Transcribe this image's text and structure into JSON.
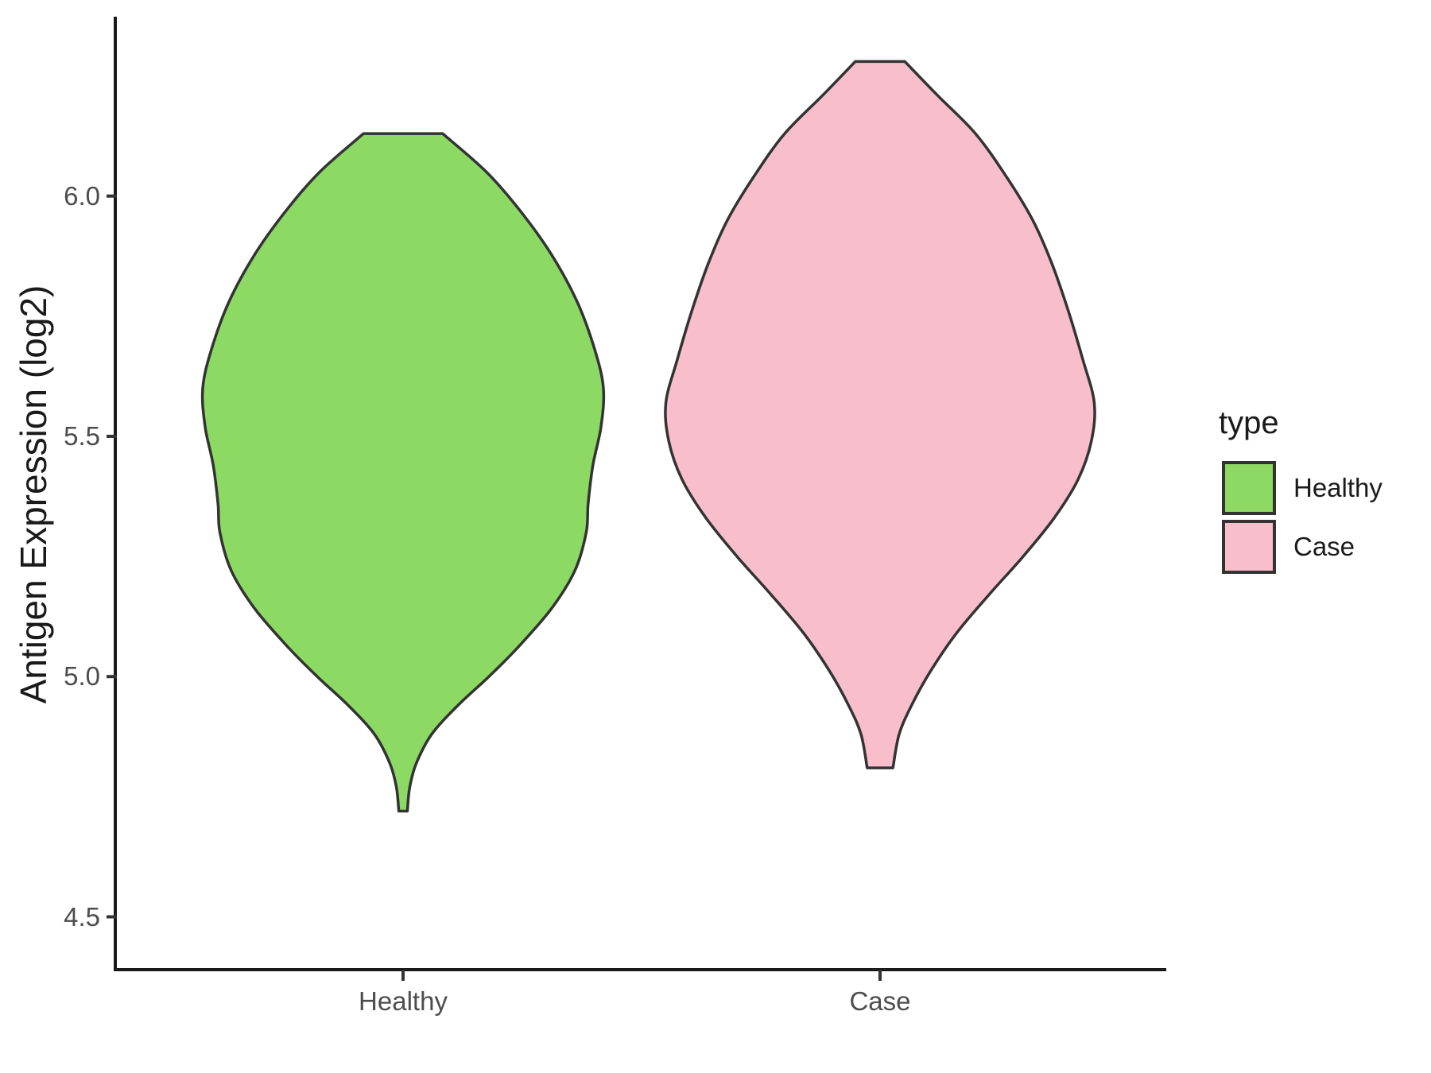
{
  "chart_data": {
    "type": "violin",
    "title": "",
    "xlabel": "",
    "ylabel": "Antigen Expression (log2)",
    "categories": [
      "Healthy",
      "Case"
    ],
    "yticks": [
      6.0,
      5.5,
      5.0,
      4.5
    ],
    "ytick_labels": [
      "6.0",
      "5.5",
      "5.0",
      "4.5"
    ],
    "ylim": [
      4.39,
      6.37
    ],
    "grid": "off",
    "legend": {
      "title": "type",
      "position": "right",
      "entries": [
        {
          "label": "Healthy",
          "color": "#8CD964"
        },
        {
          "label": "Case",
          "color": "#F8BECB"
        }
      ]
    },
    "outline_color": "#333333",
    "axis_color": "#1a1a1a",
    "tick_color": "#333333",
    "tick_text_color": "#4d4d4d",
    "violins": [
      {
        "name": "Healthy",
        "color": "#8CD964",
        "min": 4.72,
        "max": 6.13,
        "profile": [
          {
            "v": 6.13,
            "hw": 0.083
          },
          {
            "v": 6.05,
            "hw": 0.175
          },
          {
            "v": 5.97,
            "hw": 0.245
          },
          {
            "v": 5.88,
            "hw": 0.31
          },
          {
            "v": 5.78,
            "hw": 0.365
          },
          {
            "v": 5.68,
            "hw": 0.402
          },
          {
            "v": 5.6,
            "hw": 0.42
          },
          {
            "v": 5.52,
            "hw": 0.415
          },
          {
            "v": 5.44,
            "hw": 0.398
          },
          {
            "v": 5.36,
            "hw": 0.388
          },
          {
            "v": 5.3,
            "hw": 0.384
          },
          {
            "v": 5.22,
            "hw": 0.36
          },
          {
            "v": 5.14,
            "hw": 0.31
          },
          {
            "v": 5.06,
            "hw": 0.24
          },
          {
            "v": 5.0,
            "hw": 0.18
          },
          {
            "v": 4.94,
            "hw": 0.115
          },
          {
            "v": 4.88,
            "hw": 0.06
          },
          {
            "v": 4.82,
            "hw": 0.028
          },
          {
            "v": 4.77,
            "hw": 0.014
          },
          {
            "v": 4.72,
            "hw": 0.009
          }
        ]
      },
      {
        "name": "Case",
        "color": "#F8BECB",
        "min": 4.81,
        "max": 6.28,
        "profile": [
          {
            "v": 6.28,
            "hw": 0.052
          },
          {
            "v": 6.21,
            "hw": 0.12
          },
          {
            "v": 6.13,
            "hw": 0.2
          },
          {
            "v": 6.04,
            "hw": 0.265
          },
          {
            "v": 5.95,
            "hw": 0.32
          },
          {
            "v": 5.86,
            "hw": 0.36
          },
          {
            "v": 5.76,
            "hw": 0.395
          },
          {
            "v": 5.66,
            "hw": 0.425
          },
          {
            "v": 5.57,
            "hw": 0.449
          },
          {
            "v": 5.49,
            "hw": 0.443
          },
          {
            "v": 5.41,
            "hw": 0.415
          },
          {
            "v": 5.33,
            "hw": 0.365
          },
          {
            "v": 5.25,
            "hw": 0.3
          },
          {
            "v": 5.17,
            "hw": 0.228
          },
          {
            "v": 5.09,
            "hw": 0.16
          },
          {
            "v": 5.01,
            "hw": 0.105
          },
          {
            "v": 4.94,
            "hw": 0.066
          },
          {
            "v": 4.88,
            "hw": 0.04
          },
          {
            "v": 4.81,
            "hw": 0.027
          }
        ]
      }
    ]
  }
}
